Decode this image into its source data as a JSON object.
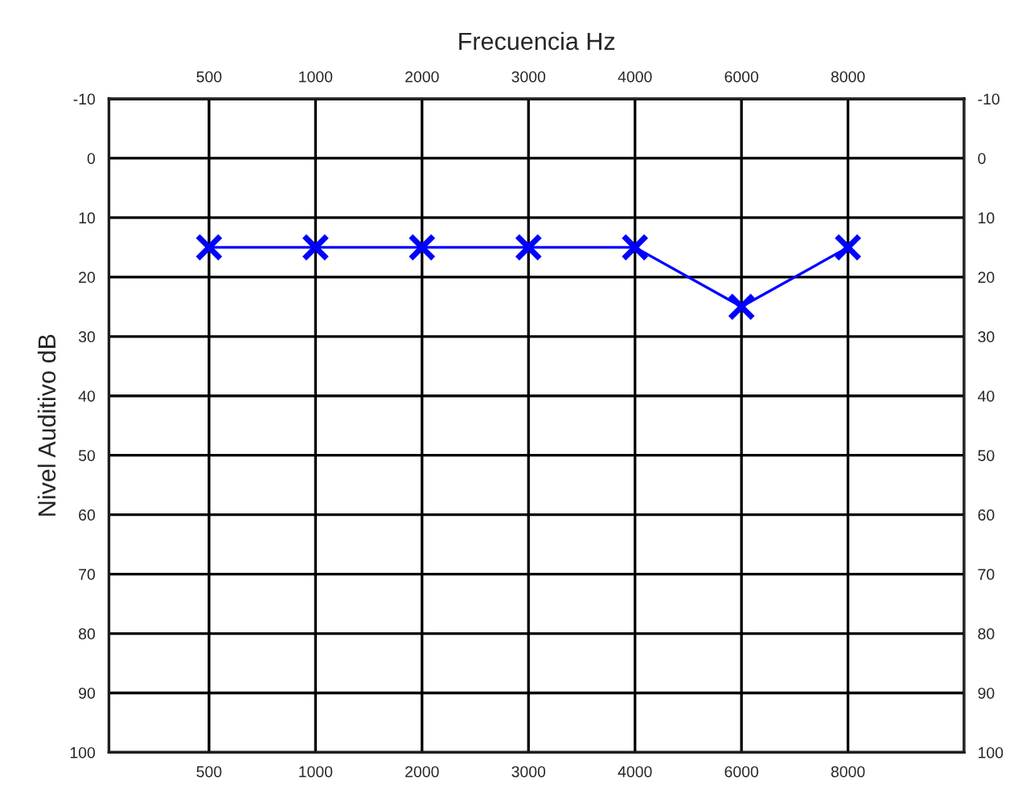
{
  "chart_data": {
    "type": "line",
    "title": "Frecuencia Hz",
    "ylabel": "Nivel Auditivo dB",
    "categories": [
      "500",
      "1000",
      "2000",
      "3000",
      "4000",
      "6000",
      "8000"
    ],
    "series": [
      {
        "color": "#0000ff",
        "values": [
          15,
          15,
          15,
          15,
          15,
          25,
          15
        ]
      }
    ],
    "ylim": [
      100,
      -10
    ],
    "yticks": [
      -10,
      0,
      10,
      20,
      30,
      40,
      50,
      60,
      70,
      80,
      90,
      100
    ],
    "y2lim": [
      100,
      -10
    ],
    "y2ticks": [
      -10,
      0,
      10,
      20,
      30,
      40,
      50,
      60,
      70,
      80,
      90,
      100
    ],
    "grid": true,
    "marker": "cross",
    "line_style": "solid",
    "legend": false
  }
}
